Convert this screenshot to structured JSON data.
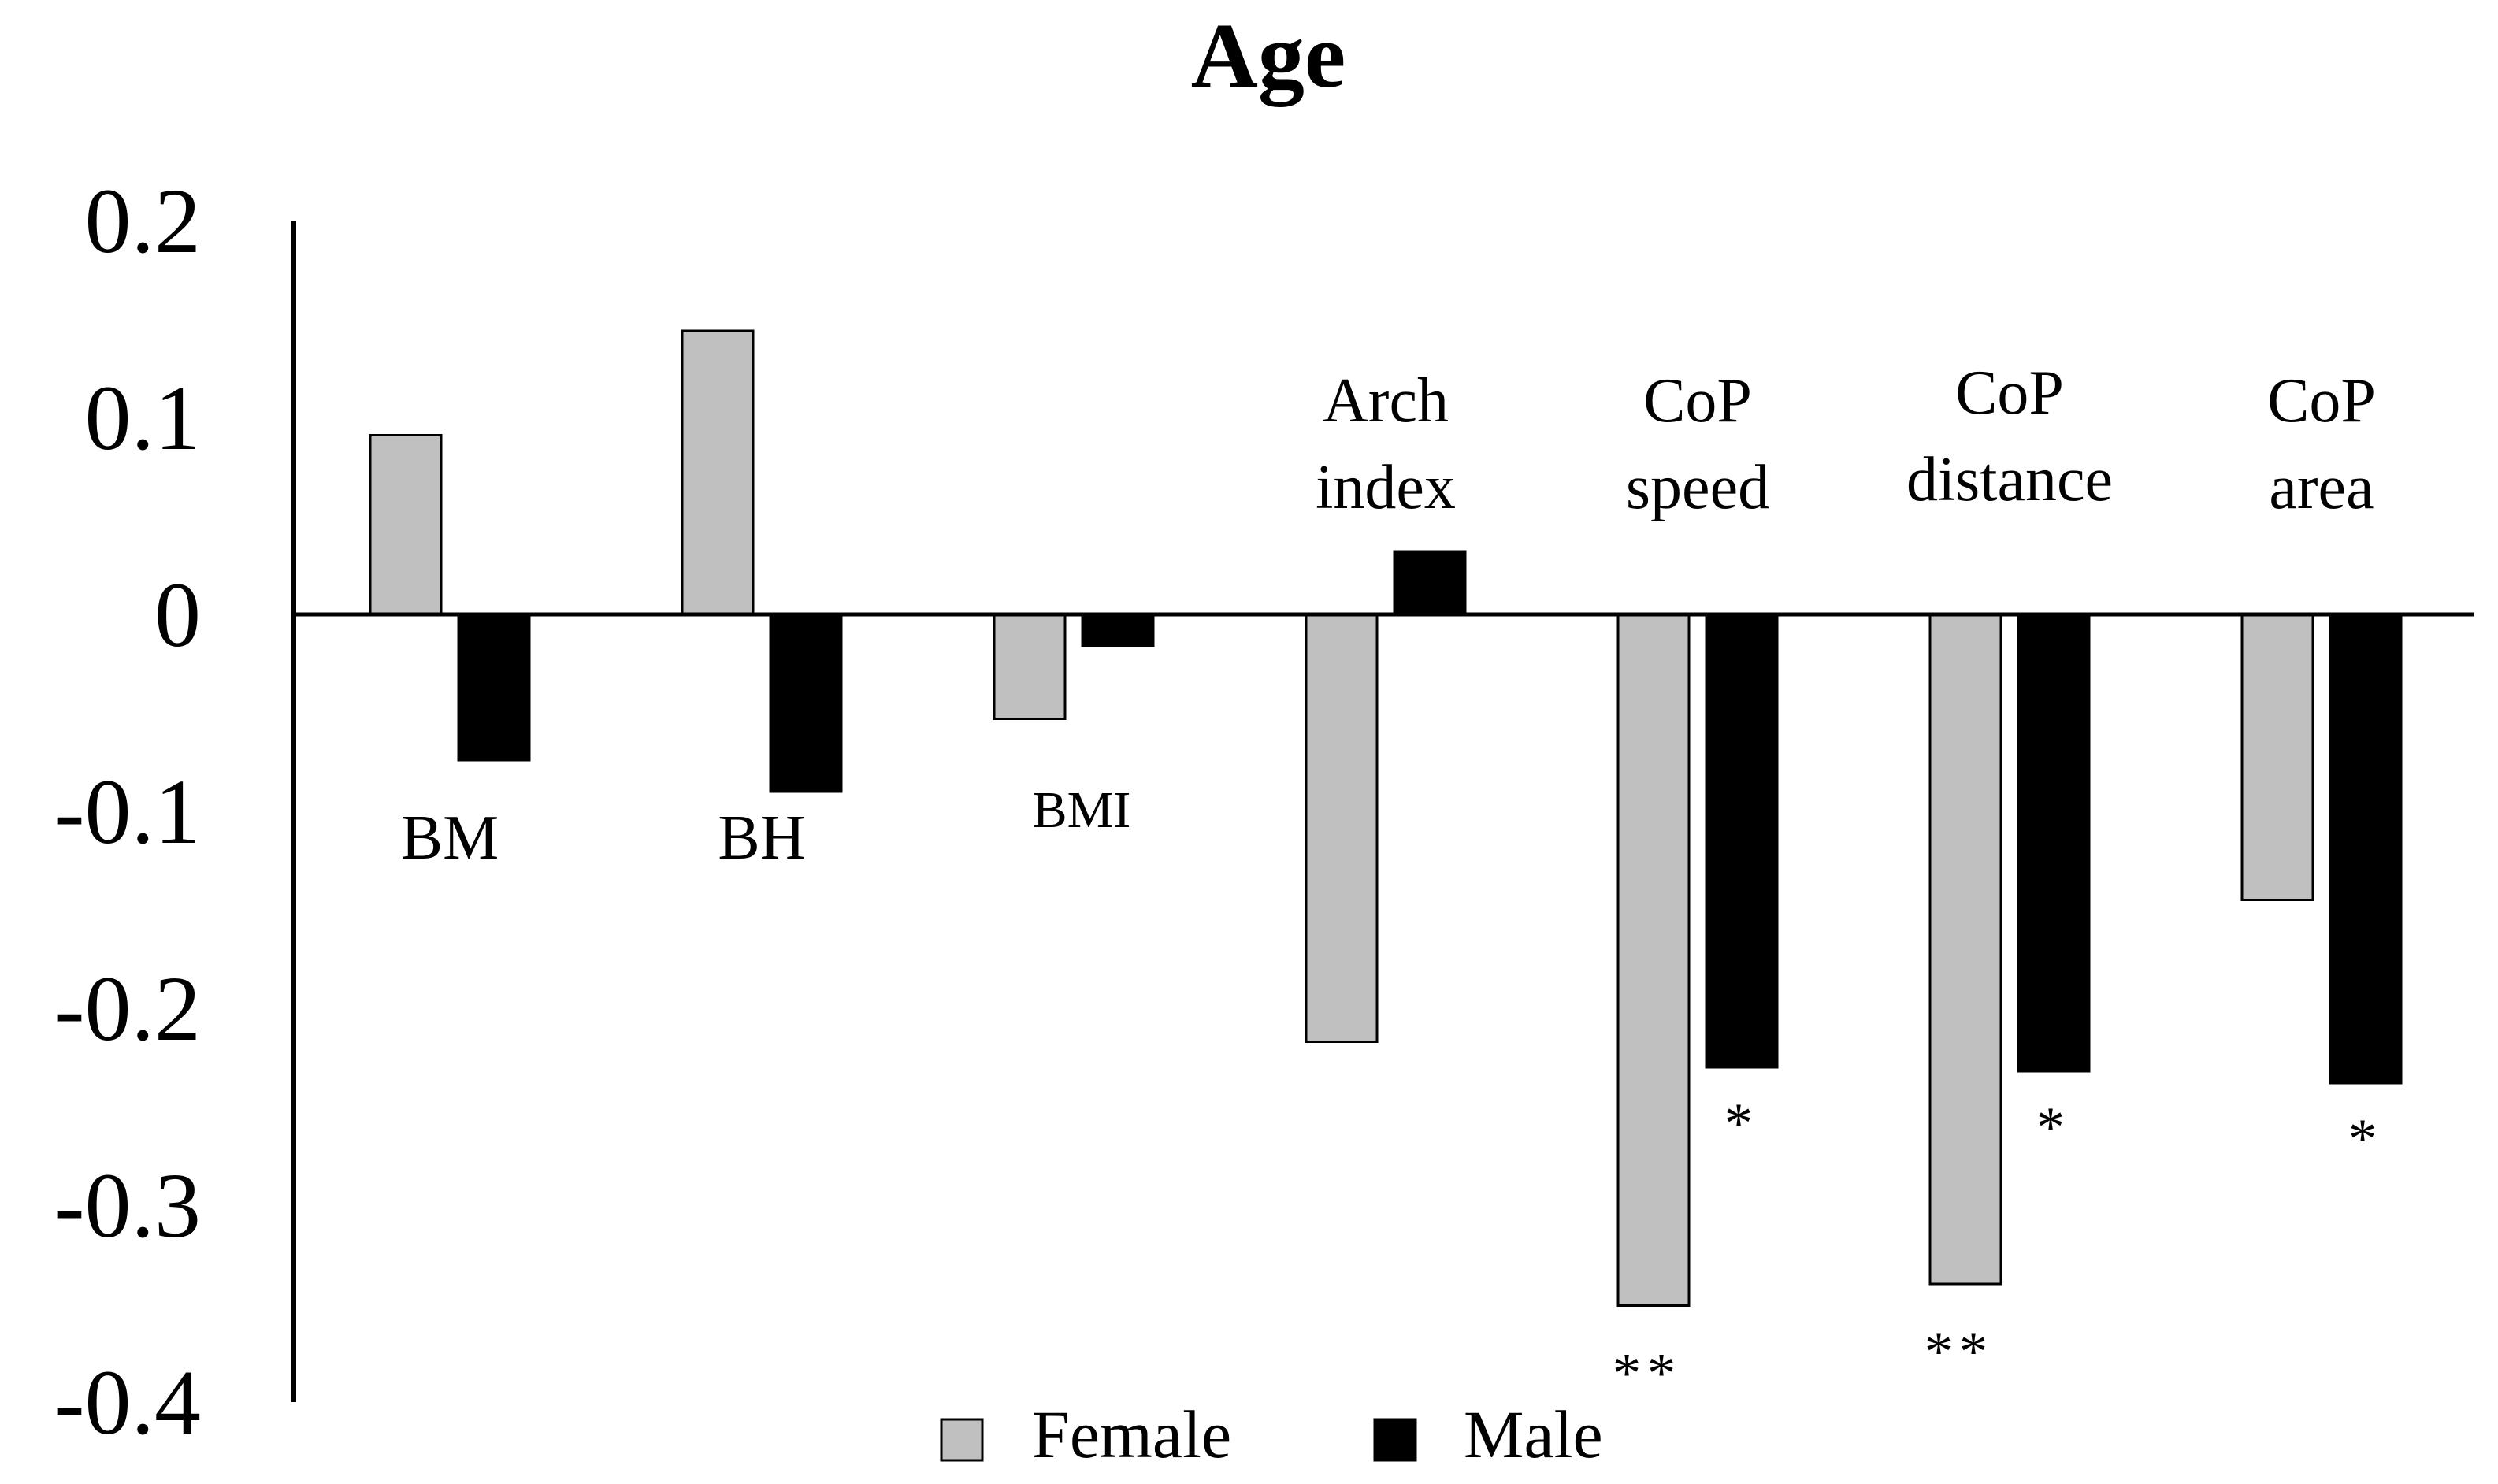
{
  "chart_data": {
    "type": "bar",
    "title": "Age",
    "xlabel": "",
    "ylabel": "",
    "ylim": [
      -0.4,
      0.2
    ],
    "yticks": [
      "0.2",
      "0.1",
      "0",
      "-0.1",
      "-0.2",
      "-0.3",
      "-0.4"
    ],
    "ytick_values": [
      0.2,
      0.1,
      0,
      -0.1,
      -0.2,
      -0.3,
      -0.4
    ],
    "grid": false,
    "legend_position": "bottom",
    "categories": [
      {
        "lines": [
          "BM"
        ],
        "small": false
      },
      {
        "lines": [
          "BH"
        ],
        "small": false
      },
      {
        "lines": [
          "BMI"
        ],
        "small": true
      },
      {
        "lines": [
          "Arch",
          "index"
        ],
        "small": false
      },
      {
        "lines": [
          "CoP",
          "speed"
        ],
        "small": false
      },
      {
        "lines": [
          "CoP",
          "distance"
        ],
        "small": false
      },
      {
        "lines": [
          "CoP",
          "area"
        ],
        "small": false
      }
    ],
    "series": [
      {
        "name": "Female",
        "color": "#c0c0c0",
        "values": [
          0.091,
          0.144,
          -0.053,
          -0.217,
          -0.351,
          -0.34,
          -0.145
        ],
        "significance": [
          "",
          "",
          "",
          "",
          "**",
          "**",
          ""
        ]
      },
      {
        "name": "Male",
        "color": "#000000",
        "values": [
          -0.074,
          -0.09,
          -0.016,
          0.032,
          -0.23,
          -0.232,
          -0.238
        ],
        "significance": [
          "",
          "",
          "",
          "",
          "*",
          "*",
          "*"
        ]
      }
    ]
  }
}
